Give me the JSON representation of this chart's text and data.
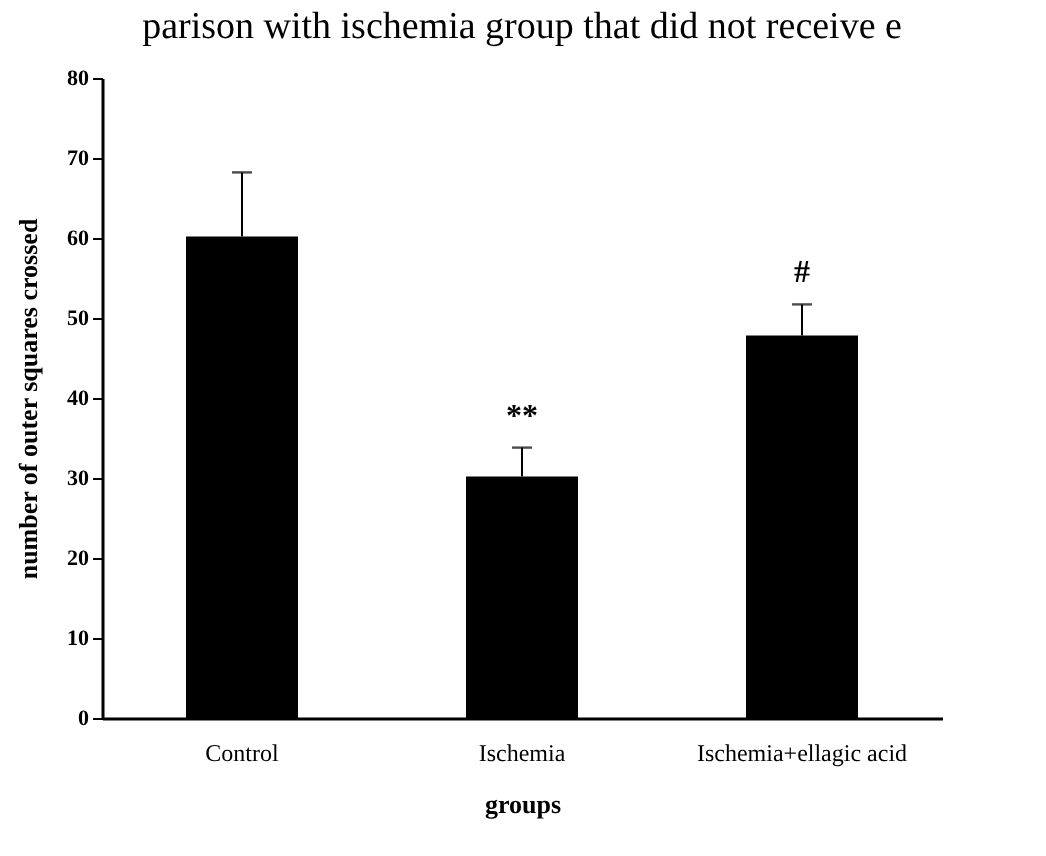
{
  "chart_data": {
    "type": "bar",
    "xlabel": "groups",
    "ylabel": "number of outer squares crossed",
    "categories": [
      "Control",
      "Ischemia",
      "Ischemia+ellagic acid"
    ],
    "values": [
      60.2,
      30.2,
      47.8
    ],
    "errors": [
      8,
      3.6,
      3.9
    ],
    "color": "#000000",
    "ylim": [
      0,
      80
    ],
    "yticks": [
      0,
      10,
      20,
      30,
      40,
      50,
      60,
      70,
      80
    ],
    "grid": false,
    "annotations": [
      "parison with ischemia group that did not receive e",
      {
        "text": "**",
        "x": "Ischemia",
        "y": 33.8
      },
      {
        "text": "#",
        "x": "Ischemia+ellagic acid",
        "y": 51.7
      }
    ]
  }
}
